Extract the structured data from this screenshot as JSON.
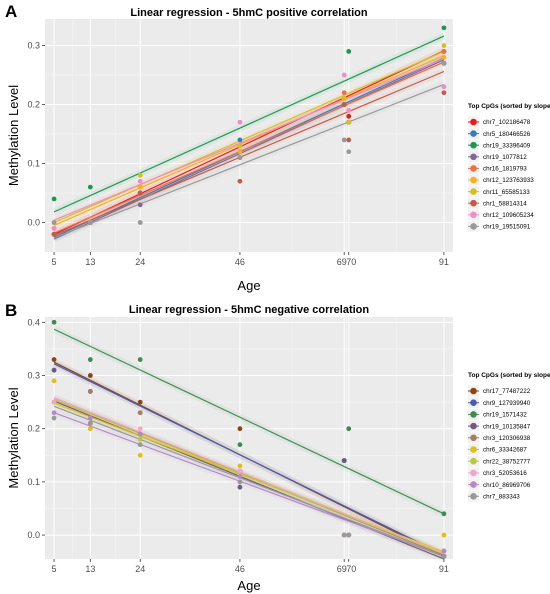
{
  "chart_data": [
    {
      "panel": "A",
      "type": "scatter",
      "title": "Linear regression - 5hmC positive correlation",
      "xlabel": "Age",
      "ylabel": "Methylation Level",
      "xlim": [
        3,
        93
      ],
      "ylim": [
        -0.05,
        0.345
      ],
      "x_ticks": [
        5,
        13,
        24,
        46,
        69,
        70,
        91
      ],
      "y_ticks": [
        0.0,
        0.1,
        0.2,
        0.3
      ],
      "y_tick_labels": [
        "0.0",
        "0.1",
        "0.2",
        "0.3"
      ],
      "grid": true,
      "legend_position": "right",
      "legend_title": "Top CpGs (sorted by slope):",
      "series": [
        {
          "name": "chr7_102186478",
          "color": "#e41a1c",
          "points": [
            [
              5,
              -0.02
            ],
            [
              13,
              0.0
            ],
            [
              24,
              0.05
            ],
            [
              46,
              0.12
            ],
            [
              69,
              0.21
            ],
            [
              70,
              0.18
            ],
            [
              91,
              0.29
            ]
          ],
          "fit": [
            [
              5,
              -0.02
            ],
            [
              91,
              0.291
            ]
          ]
        },
        {
          "name": "chr5_180466526",
          "color": "#377eb8",
          "points": [
            [
              5,
              -0.02
            ],
            [
              13,
              0.0
            ],
            [
              24,
              0.05
            ],
            [
              46,
              0.14
            ],
            [
              69,
              0.2
            ],
            [
              70,
              0.17
            ],
            [
              91,
              0.27
            ]
          ],
          "fit": [
            [
              5,
              -0.025
            ],
            [
              91,
              0.279
            ]
          ]
        },
        {
          "name": "chr19_33396409",
          "color": "#1a9850",
          "points": [
            [
              5,
              0.04
            ],
            [
              13,
              0.06
            ],
            [
              24,
              0.06
            ],
            [
              46,
              0.12
            ],
            [
              69,
              0.2
            ],
            [
              70,
              0.29
            ],
            [
              91,
              0.33
            ]
          ],
          "fit": [
            [
              5,
              0.018
            ],
            [
              91,
              0.316
            ]
          ]
        },
        {
          "name": "chr19_1077812",
          "color": "#7e6b8f",
          "points": [
            [
              5,
              -0.02
            ],
            [
              13,
              0.0
            ],
            [
              24,
              0.03
            ],
            [
              46,
              0.12
            ],
            [
              69,
              0.2
            ],
            [
              70,
              0.17
            ],
            [
              91,
              0.27
            ]
          ],
          "fit": [
            [
              5,
              -0.028
            ],
            [
              91,
              0.276
            ]
          ]
        },
        {
          "name": "chr16_1819793",
          "color": "#f46d43",
          "points": [
            [
              5,
              -0.01
            ],
            [
              13,
              0.0
            ],
            [
              24,
              0.06
            ],
            [
              46,
              0.11
            ],
            [
              69,
              0.22
            ],
            [
              70,
              0.17
            ],
            [
              91,
              0.29
            ]
          ],
          "fit": [
            [
              5,
              -0.018
            ],
            [
              91,
              0.272
            ]
          ]
        },
        {
          "name": "chr12_123763933",
          "color": "#fdae1a",
          "points": [
            [
              5,
              0.0
            ],
            [
              13,
              0.0
            ],
            [
              24,
              0.06
            ],
            [
              46,
              0.12
            ],
            [
              69,
              0.21
            ],
            [
              70,
              0.19
            ],
            [
              91,
              0.28
            ]
          ],
          "fit": [
            [
              5,
              -0.005
            ],
            [
              91,
              0.283
            ]
          ]
        },
        {
          "name": "chr11_65585133",
          "color": "#d4c21b",
          "points": [
            [
              5,
              0.0
            ],
            [
              13,
              0.0
            ],
            [
              24,
              0.08
            ],
            [
              46,
              0.13
            ],
            [
              69,
              0.21
            ],
            [
              70,
              0.17
            ],
            [
              91,
              0.3
            ]
          ],
          "fit": [
            [
              5,
              0.0
            ],
            [
              91,
              0.29
            ]
          ]
        },
        {
          "name": "chr1_58814314",
          "color": "#c65a45",
          "points": [
            [
              5,
              -0.02
            ],
            [
              13,
              0.0
            ],
            [
              24,
              0.05
            ],
            [
              46,
              0.07
            ],
            [
              69,
              0.2
            ],
            [
              70,
              0.14
            ],
            [
              91,
              0.22
            ]
          ],
          "fit": [
            [
              5,
              -0.022
            ],
            [
              91,
              0.256
            ]
          ]
        },
        {
          "name": "chr12_109605234",
          "color": "#f08cc8",
          "points": [
            [
              5,
              -0.01
            ],
            [
              13,
              0.0
            ],
            [
              24,
              0.07
            ],
            [
              46,
              0.17
            ],
            [
              69,
              0.25
            ],
            [
              70,
              0.19
            ],
            [
              91,
              0.23
            ]
          ],
          "fit": [
            [
              5,
              0.004
            ],
            [
              91,
              0.278
            ]
          ]
        },
        {
          "name": "chr19_19515091",
          "color": "#999999",
          "points": [
            [
              5,
              0.0
            ],
            [
              13,
              0.0
            ],
            [
              24,
              0.0
            ],
            [
              46,
              0.11
            ],
            [
              69,
              0.14
            ],
            [
              70,
              0.12
            ],
            [
              91,
              0.27
            ]
          ],
          "fit": [
            [
              5,
              -0.026
            ],
            [
              91,
              0.234
            ]
          ]
        }
      ]
    },
    {
      "panel": "B",
      "type": "scatter",
      "title": "Linear regression - 5hmC negative correlation",
      "xlabel": "Age",
      "ylabel": "Methylation Level",
      "xlim": [
        3,
        93
      ],
      "ylim": [
        -0.045,
        0.41
      ],
      "x_ticks": [
        5,
        13,
        24,
        46,
        69,
        70,
        91
      ],
      "y_ticks": [
        0.0,
        0.1,
        0.2,
        0.3,
        0.4
      ],
      "y_tick_labels": [
        "0.0",
        "0.1",
        "0.2",
        "0.3",
        "0.4"
      ],
      "grid": true,
      "legend_position": "right",
      "legend_title": "Top CpGs (sorted by slope):",
      "series": [
        {
          "name": "chr17_77487222",
          "color": "#8b4513",
          "points": [
            [
              5,
              0.33
            ],
            [
              13,
              0.3
            ],
            [
              24,
              0.25
            ],
            [
              46,
              0.2
            ],
            [
              69,
              0.14
            ],
            [
              70,
              0.0
            ],
            [
              91,
              -0.03
            ]
          ],
          "fit": [
            [
              5,
              0.325
            ],
            [
              91,
              -0.04
            ]
          ]
        },
        {
          "name": "chr9_127939940",
          "color": "#4a5bb0",
          "points": [
            [
              5,
              0.31
            ],
            [
              13,
              0.27
            ],
            [
              24,
              0.23
            ],
            [
              46,
              0.12
            ],
            [
              69,
              0.14
            ],
            [
              70,
              0.0
            ],
            [
              91,
              -0.04
            ]
          ],
          "fit": [
            [
              5,
              0.322
            ],
            [
              91,
              -0.037
            ]
          ]
        },
        {
          "name": "chr19_1571432",
          "color": "#3f8a52",
          "points": [
            [
              5,
              0.4
            ],
            [
              13,
              0.33
            ],
            [
              24,
              0.33
            ],
            [
              46,
              0.17
            ],
            [
              69,
              0.14
            ],
            [
              70,
              0.2
            ],
            [
              91,
              0.04
            ]
          ],
          "fit": [
            [
              5,
              0.387
            ],
            [
              91,
              0.04
            ]
          ]
        },
        {
          "name": "chr19_10135847",
          "color": "#6e5c7e",
          "points": [
            [
              5,
              0.31
            ],
            [
              13,
              0.21
            ],
            [
              24,
              0.19
            ],
            [
              46,
              0.09
            ],
            [
              69,
              0.14
            ],
            [
              70,
              0.0
            ],
            [
              91,
              -0.04
            ]
          ],
          "fit": [
            [
              5,
              0.252
            ],
            [
              91,
              -0.045
            ]
          ]
        },
        {
          "name": "chr3_120306938",
          "color": "#a08060",
          "points": [
            [
              5,
              0.25
            ],
            [
              13,
              0.27
            ],
            [
              24,
              0.23
            ],
            [
              46,
              0.12
            ],
            [
              69,
              0.0
            ],
            [
              70,
              0.0
            ],
            [
              91,
              -0.03
            ]
          ],
          "fit": [
            [
              5,
              0.258
            ],
            [
              91,
              -0.038
            ]
          ]
        },
        {
          "name": "chr6_33342687",
          "color": "#e0c010",
          "points": [
            [
              5,
              0.29
            ],
            [
              13,
              0.2
            ],
            [
              24,
              0.15
            ],
            [
              46,
              0.13
            ],
            [
              69,
              0.0
            ],
            [
              70,
              0.0
            ],
            [
              91,
              0.0
            ]
          ],
          "fit": [
            [
              5,
              0.248
            ],
            [
              91,
              -0.032
            ]
          ]
        },
        {
          "name": "chr22_38752777",
          "color": "#b8c83c",
          "points": [
            [
              5,
              0.25
            ],
            [
              13,
              0.21
            ],
            [
              24,
              0.18
            ],
            [
              46,
              0.11
            ],
            [
              69,
              0.0
            ],
            [
              70,
              0.0
            ],
            [
              91,
              -0.03
            ]
          ],
          "fit": [
            [
              5,
              0.255
            ],
            [
              91,
              -0.036
            ]
          ]
        },
        {
          "name": "chr3_52053616",
          "color": "#f4a6c6",
          "points": [
            [
              5,
              0.25
            ],
            [
              13,
              0.22
            ],
            [
              24,
              0.2
            ],
            [
              46,
              0.12
            ],
            [
              69,
              0.0
            ],
            [
              70,
              0.0
            ],
            [
              91,
              -0.03
            ]
          ],
          "fit": [
            [
              5,
              0.258
            ],
            [
              91,
              -0.034
            ]
          ]
        },
        {
          "name": "chr10_86969706",
          "color": "#b589c9",
          "points": [
            [
              5,
              0.23
            ],
            [
              13,
              0.22
            ],
            [
              24,
              0.19
            ],
            [
              46,
              0.11
            ],
            [
              69,
              0.0
            ],
            [
              70,
              0.0
            ],
            [
              91,
              -0.03
            ]
          ],
          "fit": [
            [
              5,
              0.23
            ],
            [
              91,
              -0.04
            ]
          ]
        },
        {
          "name": "chr7_883343",
          "color": "#999999",
          "points": [
            [
              5,
              0.22
            ],
            [
              13,
              0.21
            ],
            [
              24,
              0.17
            ],
            [
              46,
              0.1
            ],
            [
              69,
              0.0
            ],
            [
              70,
              0.0
            ],
            [
              91,
              -0.04
            ]
          ],
          "fit": [
            [
              5,
              0.242
            ],
            [
              91,
              -0.04
            ]
          ]
        }
      ]
    }
  ]
}
